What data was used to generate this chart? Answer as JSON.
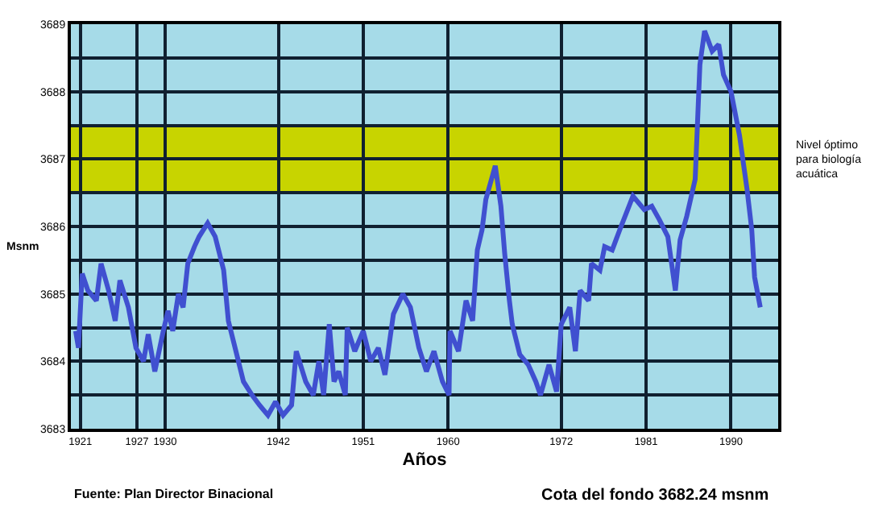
{
  "chart_data": {
    "type": "line",
    "xlabel": "Años",
    "ylabel": "Msnm",
    "x": [
      1920.5,
      1920.8,
      1921.2,
      1921.8,
      1922.7,
      1923.2,
      1924.0,
      1924.7,
      1925.2,
      1926.1,
      1926.9,
      1927.7,
      1928.2,
      1928.9,
      1929.8,
      1930.3,
      1930.8,
      1931.4,
      1931.9,
      1932.4,
      1933.1,
      1933.6,
      1934.5,
      1935.3,
      1936.2,
      1936.7,
      1937.5,
      1938.3,
      1939.2,
      1940.0,
      1940.9,
      1941.7,
      1942.5,
      1943.4,
      1943.9,
      1944.9,
      1945.7,
      1946.3,
      1946.8,
      1947.4,
      1947.9,
      1948.4,
      1949.1,
      1949.3,
      1950.1,
      1951.0,
      1951.8,
      1952.6,
      1953.3,
      1954.2,
      1955.2,
      1956.0,
      1956.9,
      1957.7,
      1958.5,
      1959.4,
      1960.1,
      1960.2,
      1961.1,
      1961.9,
      1962.6,
      1963.1,
      1963.6,
      1964.0,
      1965.0,
      1965.6,
      1966.0,
      1966.5,
      1966.8,
      1967.6,
      1968.5,
      1969.3,
      1969.8,
      1970.7,
      1971.5,
      1972.0,
      1972.9,
      1973.5,
      1974.0,
      1974.9,
      1975.2,
      1976.1,
      1976.6,
      1977.4,
      1978.2,
      1979.6,
      1980.8,
      1981.6,
      1982.4,
      1983.3,
      1984.1,
      1984.6,
      1985.3,
      1986.2,
      1986.7,
      1987.2,
      1988.0,
      1988.7,
      1989.2,
      1990.0,
      1990.9,
      1991.7,
      1992.2,
      1992.5,
      1993.1
    ],
    "series": [
      {
        "color": "#4050d0",
        "values": [
          3684.45,
          3684.2,
          3685.3,
          3685.05,
          3684.9,
          3685.45,
          3685.05,
          3684.6,
          3685.2,
          3684.8,
          3684.2,
          3684.0,
          3684.4,
          3683.85,
          3684.45,
          3684.75,
          3684.45,
          3685.0,
          3684.8,
          3685.45,
          3685.7,
          3685.85,
          3686.05,
          3685.85,
          3685.35,
          3684.6,
          3684.15,
          3683.7,
          3683.5,
          3683.35,
          3683.2,
          3683.4,
          3683.2,
          3683.35,
          3684.15,
          3683.7,
          3683.5,
          3684.0,
          3683.5,
          3684.55,
          3683.7,
          3683.85,
          3683.5,
          3684.5,
          3684.15,
          3684.45,
          3684.0,
          3684.2,
          3683.8,
          3684.7,
          3685.0,
          3684.8,
          3684.2,
          3683.85,
          3684.15,
          3683.7,
          3683.5,
          3684.45,
          3684.15,
          3684.9,
          3684.6,
          3685.65,
          3685.95,
          3686.4,
          3686.9,
          3686.3,
          3685.6,
          3684.9,
          3684.55,
          3684.1,
          3683.95,
          3683.7,
          3683.5,
          3683.95,
          3683.55,
          3684.55,
          3684.8,
          3684.15,
          3685.05,
          3684.9,
          3685.45,
          3685.35,
          3685.7,
          3685.65,
          3685.95,
          3686.45,
          3686.25,
          3686.3,
          3686.1,
          3685.85,
          3685.05,
          3685.8,
          3686.15,
          3686.7,
          3688.4,
          3688.9,
          3688.6,
          3688.7,
          3688.25,
          3688.0,
          3687.35,
          3686.55,
          3685.95,
          3685.25,
          3684.8
        ]
      }
    ],
    "xlim": [
      1920,
      1995
    ],
    "xticks": [
      1921,
      1927,
      1930,
      1942,
      1951,
      1960,
      1972,
      1981,
      1990
    ],
    "ylim": [
      3683,
      3689
    ],
    "yticks": [
      3683,
      {
        "value": 3683.5,
        "label": null
      },
      3684,
      {
        "value": 3684.5,
        "label": null
      },
      3685,
      {
        "value": 3685.5,
        "label": null
      },
      3686,
      {
        "value": 3686.5,
        "label": null
      },
      3687,
      {
        "value": 3687.5,
        "label": null
      },
      3688,
      {
        "value": 3688.5,
        "label": null
      },
      3689
    ],
    "grid": true,
    "line_style": "solid",
    "marker": "none",
    "bands": [
      {
        "axis": "y",
        "from": 3686.5,
        "to": 3687.5,
        "label": "Nivel óptimo para biología acuática",
        "color": "#c8d400"
      }
    ],
    "annotations": [
      "Fuente: Plan Director Binacional",
      "Cota del fondo 3682.24 msnm"
    ]
  }
}
